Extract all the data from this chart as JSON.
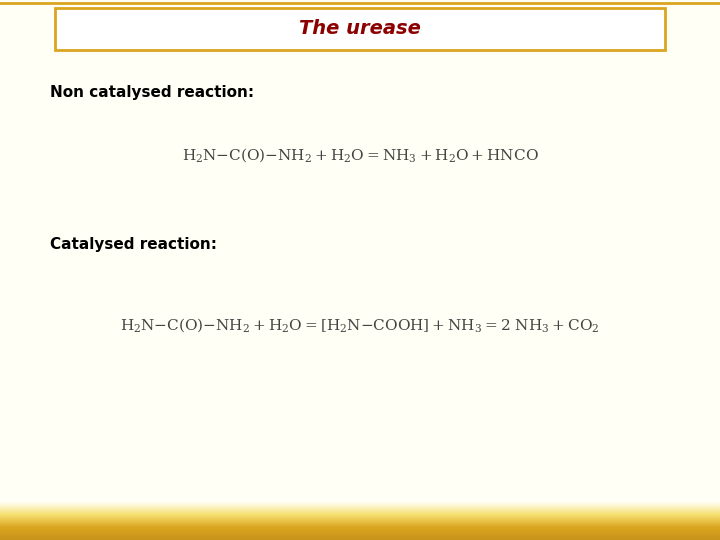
{
  "title": "The urease",
  "title_color": "#8B0000",
  "title_fontstyle": "italic",
  "title_fontsize": 14,
  "title_fontweight": "bold",
  "background_color": "#FFFFF5",
  "border_color": "#DAA520",
  "label1": "Non catalysed reaction:",
  "label2": "Catalysed reaction:",
  "label_fontsize": 11,
  "label_fontweight": "bold",
  "eq_fontsize": 11,
  "eq_color": "#444444",
  "header_box_color": "#DAA520",
  "bottom_bar_color": "#DAA520"
}
